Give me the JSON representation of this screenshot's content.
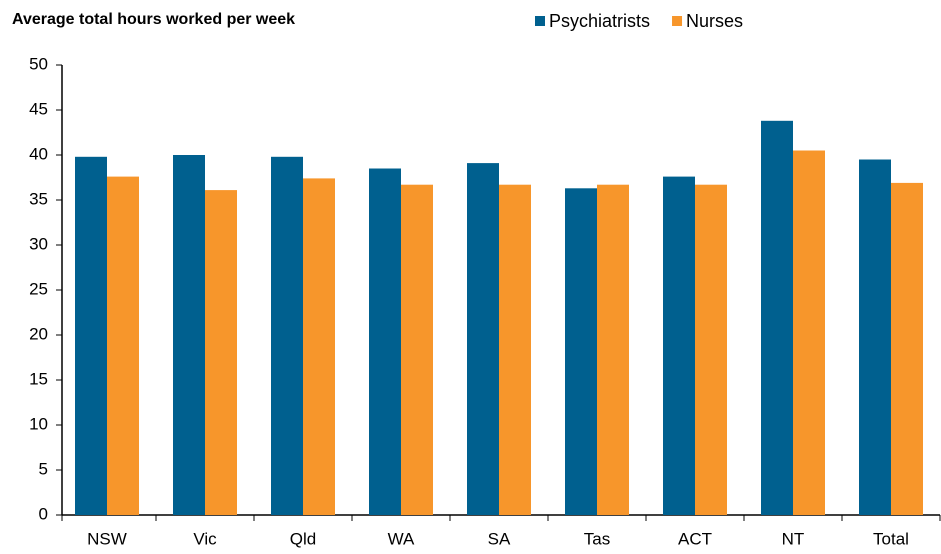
{
  "chart_data": {
    "type": "bar",
    "title": "Average total hours worked per week",
    "categories": [
      "NSW",
      "Vic",
      "Qld",
      "WA",
      "SA",
      "Tas",
      "ACT",
      "NT",
      "Total"
    ],
    "series": [
      {
        "name": "Psychiatrists",
        "color": "#00608f",
        "values": [
          39.8,
          40.0,
          39.8,
          38.5,
          39.1,
          36.3,
          37.6,
          43.8,
          39.5
        ]
      },
      {
        "name": "Nurses",
        "color": "#f7962b",
        "values": [
          37.6,
          36.1,
          37.4,
          36.7,
          36.7,
          36.7,
          36.7,
          40.5,
          36.9
        ]
      }
    ],
    "ylim": [
      0,
      50
    ],
    "yticks": [
      0,
      5,
      10,
      15,
      20,
      25,
      30,
      35,
      40,
      45,
      50
    ],
    "grid": false
  }
}
